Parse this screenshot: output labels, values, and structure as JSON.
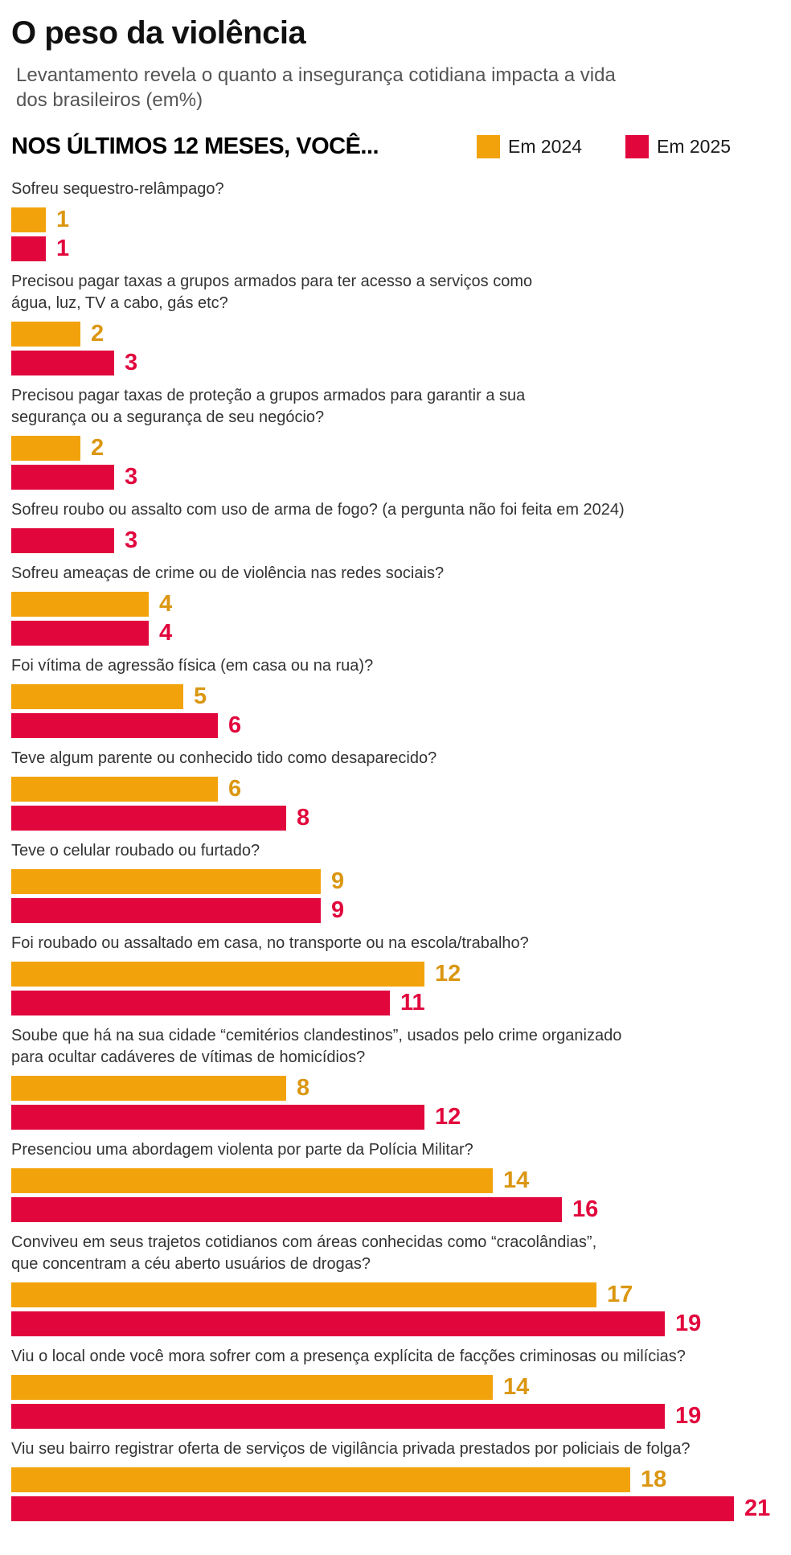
{
  "chart_data": {
    "type": "bar",
    "orientation": "horizontal",
    "title": "O peso da violência",
    "subtitle": "Levantamento revela o quanto a insegurança cotidiana impacta a vida\ndos brasileiros (em%)",
    "section_title": "NOS ÚLTIMOS 12 MESES, VOCÊ...",
    "unit": "percent",
    "xlim": [
      0,
      21
    ],
    "grid": false,
    "legend_position": "top-right",
    "categories": [
      "Sofreu sequestro-relâmpago?",
      "Precisou pagar taxas a grupos armados para ter acesso a serviços como\nágua, luz, TV a cabo, gás etc?",
      "Precisou pagar taxas de proteção a grupos armados para garantir a sua\nsegurança ou a segurança de seu negócio?",
      "Sofreu roubo ou assalto com uso de arma de fogo? (a pergunta não foi feita em 2024)",
      "Sofreu ameaças de crime ou de violência nas redes sociais?",
      "Foi vítima de agressão física (em casa ou na rua)?",
      "Teve algum parente ou conhecido tido como desaparecido?",
      "Teve o celular roubado ou furtado?",
      "Foi roubado ou assaltado em casa, no transporte ou na escola/trabalho?",
      "Soube que há na sua cidade “cemitérios clandestinos”, usados pelo crime organizado\npara ocultar cadáveres de vítimas de homicídios?",
      "Presenciou uma abordagem violenta por parte da Polícia Militar?",
      "Conviveu em seus trajetos cotidianos com áreas conhecidas como “cracolândias”,\nque concentram a céu aberto usuários de drogas?",
      "Viu o local onde você mora sofrer com a presença explícita de facções criminosas ou milícias?",
      "Viu seu bairro registrar oferta de serviços de vigilância privada prestados por policiais de folga?"
    ],
    "series": [
      {
        "key": "2024",
        "name": "Em 2024",
        "color": "#F2A30B",
        "label_color": "#DB9712",
        "values": [
          1,
          2,
          2,
          null,
          4,
          5,
          6,
          9,
          12,
          8,
          14,
          17,
          14,
          18
        ]
      },
      {
        "key": "2025",
        "name": "Em 2025",
        "color": "#E1073D",
        "label_color": "#E1073D",
        "values": [
          1,
          3,
          3,
          3,
          4,
          6,
          8,
          9,
          11,
          12,
          16,
          19,
          19,
          21
        ]
      }
    ]
  }
}
